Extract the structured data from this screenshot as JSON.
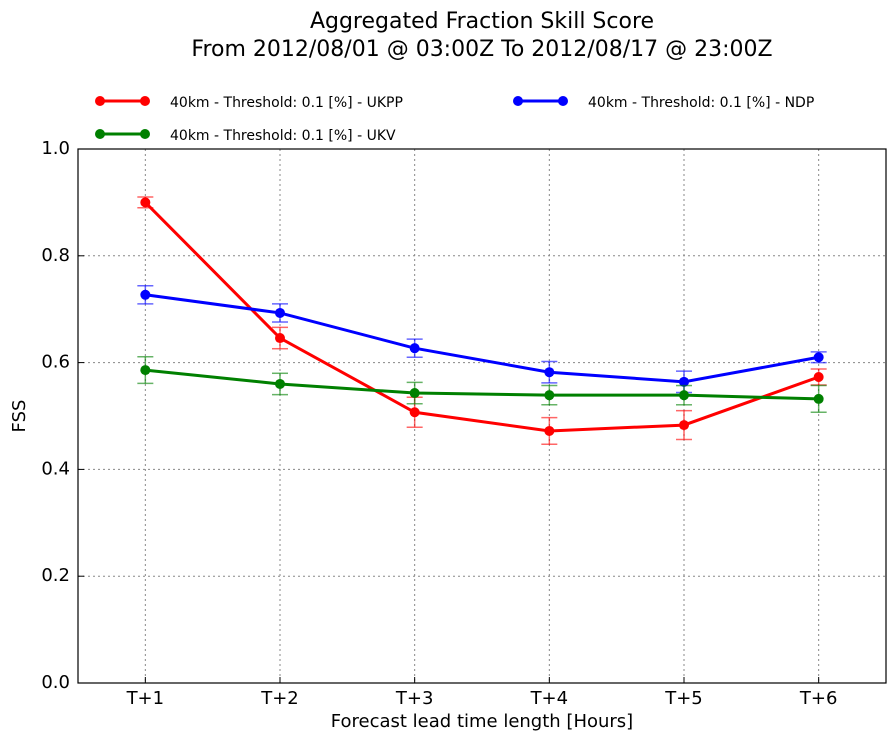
{
  "chart_data": {
    "type": "line",
    "title": "Aggregated Fraction Skill Score",
    "subtitle": "From 2012/08/01 @ 03:00Z  To 2012/08/17 @ 23:00Z",
    "xlabel": "Forecast lead time length [Hours]",
    "ylabel": "FSS",
    "categories": [
      "T+1",
      "T+2",
      "T+3",
      "T+4",
      "T+5",
      "T+6"
    ],
    "series": [
      {
        "name": "40km - Threshold: 0.1 [%] - UKPP",
        "color": "#ff0000",
        "values": [
          0.9,
          0.646,
          0.507,
          0.472,
          0.483,
          0.573
        ],
        "errors": [
          0.01,
          0.02,
          0.028,
          0.025,
          0.027,
          0.015
        ]
      },
      {
        "name": "40km - Threshold: 0.1 [%] - NDP",
        "color": "#0000ff",
        "values": [
          0.727,
          0.693,
          0.627,
          0.582,
          0.564,
          0.61
        ],
        "errors": [
          0.017,
          0.017,
          0.017,
          0.02,
          0.02,
          0.01
        ]
      },
      {
        "name": "40km - Threshold: 0.1 [%] - UKV",
        "color": "#008000",
        "values": [
          0.586,
          0.56,
          0.543,
          0.539,
          0.539,
          0.532
        ],
        "errors": [
          0.025,
          0.02,
          0.02,
          0.018,
          0.018,
          0.025
        ]
      }
    ],
    "ylim": [
      0,
      1
    ],
    "yticks": [
      {
        "value": 0,
        "label": "0.0"
      },
      0.2,
      0.4,
      0.6,
      0.8,
      {
        "value": 1,
        "label": "1.0"
      }
    ],
    "grid": true
  }
}
